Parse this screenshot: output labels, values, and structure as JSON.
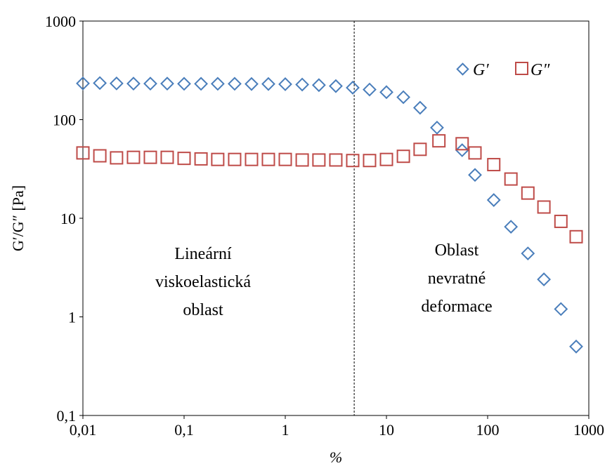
{
  "chart_data": {
    "type": "scatter",
    "xscale": "log",
    "yscale": "log",
    "xlim": [
      0.01,
      1000
    ],
    "ylim": [
      0.1,
      1000
    ],
    "xlabel": "%",
    "ylabel": "G′/G″ [Pa]",
    "xticks": [
      0.01,
      0.1,
      1,
      10,
      100,
      1000
    ],
    "xtick_labels": [
      "0,01",
      "0,1",
      "1",
      "10",
      "100",
      "1000"
    ],
    "yticks": [
      0.1,
      1,
      10,
      100,
      1000
    ],
    "ytick_labels": [
      "0,1",
      "1",
      "10",
      "100",
      "1000"
    ],
    "grid": false,
    "legend_position": "top-right",
    "vline": {
      "x": 4.8,
      "style": "dashed"
    },
    "annotations": [
      {
        "lines": [
          "Lineární",
          "viskoelastická",
          "oblast"
        ]
      },
      {
        "lines": [
          "Oblast",
          "nevratné",
          "deformace"
        ]
      }
    ],
    "series": [
      {
        "name": "G′",
        "marker": "diamond",
        "color": "#4a7ebb",
        "x": [
          0.01,
          0.0147,
          0.0215,
          0.0316,
          0.0464,
          0.0681,
          0.1,
          0.147,
          0.215,
          0.316,
          0.464,
          0.681,
          1,
          1.47,
          2.15,
          3.16,
          4.64,
          6.81,
          10,
          14.7,
          21.5,
          31.6,
          56,
          75,
          115,
          170,
          250,
          360,
          530,
          750
        ],
        "y": [
          233,
          235,
          233,
          232,
          232,
          232,
          231,
          231,
          231,
          231,
          230,
          230,
          229,
          227,
          224,
          219,
          211,
          202,
          190,
          169,
          132,
          83,
          49,
          27.5,
          15.3,
          8.2,
          4.4,
          2.4,
          1.2,
          0.5
        ]
      },
      {
        "name": "G″",
        "marker": "square",
        "color": "#be4b48",
        "x": [
          0.01,
          0.0147,
          0.0215,
          0.0316,
          0.0464,
          0.0681,
          0.1,
          0.147,
          0.215,
          0.316,
          0.464,
          0.681,
          1,
          1.47,
          2.15,
          3.16,
          4.64,
          6.81,
          10,
          14.7,
          21.5,
          33,
          56,
          75,
          115,
          170,
          250,
          360,
          530,
          750
        ],
        "y": [
          46,
          43,
          41,
          41.5,
          41.5,
          41.5,
          40.5,
          40,
          39.5,
          39.5,
          39.5,
          39.5,
          39.5,
          39,
          39,
          39,
          38.5,
          38.5,
          39.5,
          42.5,
          50,
          61,
          57,
          46,
          35,
          25,
          18,
          13,
          9.3,
          6.5
        ]
      }
    ]
  }
}
